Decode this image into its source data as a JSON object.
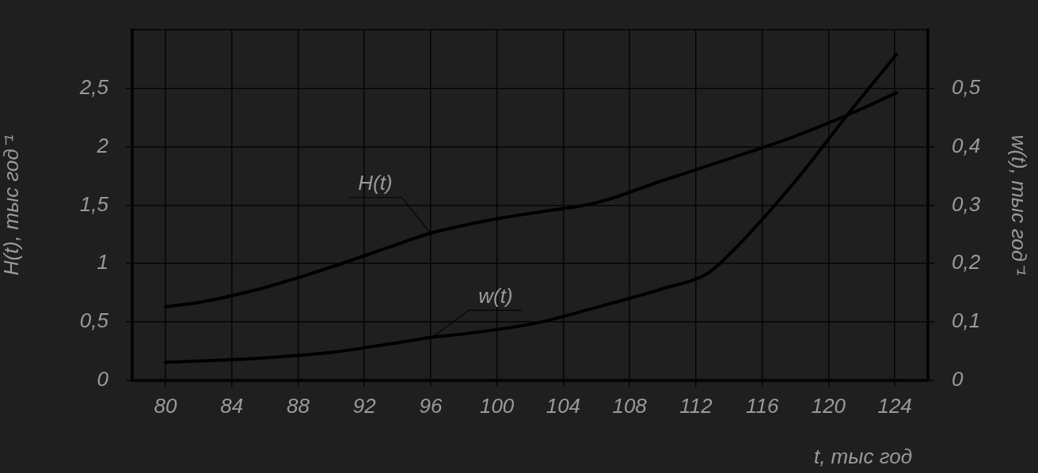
{
  "chart_data": {
    "type": "line",
    "xlabel": "t, тыс год",
    "ylabel": "H(t), тыс год⁻¹",
    "y2label": "w(t), тыс год⁻¹",
    "xlim": [
      78,
      126
    ],
    "xticks": [
      80,
      84,
      88,
      92,
      96,
      100,
      104,
      108,
      112,
      116,
      120,
      124
    ],
    "ylim": [
      0,
      3
    ],
    "yticks": [
      0,
      {
        "value": 0.5,
        "label": "0,5"
      },
      1,
      {
        "value": 1.5,
        "label": "1,5"
      },
      2,
      {
        "value": 2.5,
        "label": "2,5"
      }
    ],
    "y2lim": [
      0,
      0.6
    ],
    "y2ticks": [
      0,
      {
        "value": 0.1,
        "label": "0,1"
      },
      {
        "value": 0.2,
        "label": "0,2"
      },
      {
        "value": 0.3,
        "label": "0,3"
      },
      {
        "value": 0.4,
        "label": "0,4"
      },
      {
        "value": 0.5,
        "label": "0,5"
      }
    ],
    "grid": true,
    "legend": false,
    "marker": "none",
    "line_style": "solid",
    "series": [
      {
        "name": "H(t)",
        "color": "#000000",
        "x": [
          80.0,
          82.1,
          85.6,
          90.0,
          94.1,
          96.0,
          98.1,
          100.3,
          102.5,
          106.0,
          110.0,
          114.1,
          118.0,
          121.3,
          124.1
        ],
        "values": [
          0.63,
          0.67,
          0.78,
          0.97,
          1.17,
          1.26,
          1.33,
          1.39,
          1.44,
          1.52,
          1.71,
          1.9,
          2.09,
          2.28,
          2.46
        ]
      },
      {
        "name": "w(t)",
        "color": "#000000",
        "axis": "y2",
        "x": [
          80.0,
          85.6,
          90.0,
          94.1,
          96.1,
          98.1,
          102.5,
          106.0,
          110.0,
          112.7,
          114.1,
          118.0,
          121.3,
          124.1
        ],
        "values": [
          0.031,
          0.038,
          0.048,
          0.065,
          0.074,
          0.08,
          0.099,
          0.125,
          0.157,
          0.183,
          0.218,
          0.341,
          0.46,
          0.558
        ]
      }
    ]
  }
}
